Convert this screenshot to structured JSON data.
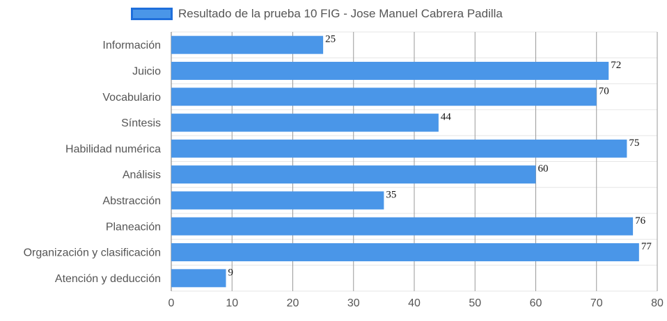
{
  "chart_data": {
    "type": "bar",
    "orientation": "horizontal",
    "title": "",
    "xlabel": "",
    "ylabel": "",
    "categories": [
      "Información",
      "Juicio",
      "Vocabulario",
      "Síntesis",
      "Habilidad numérica",
      "Análisis",
      "Abstracción",
      "Planeación",
      "Organización y clasificación",
      "Atención y deducción"
    ],
    "series": [
      {
        "name": "Resultado de la prueba 10 FIG - Jose Manuel Cabrera Padilla",
        "values": [
          25,
          72,
          70,
          44,
          75,
          60,
          35,
          76,
          77,
          9
        ],
        "color": "#4a96e8"
      }
    ],
    "xlim": [
      0,
      80
    ],
    "ticks": [
      "0",
      "10",
      "20",
      "30",
      "40",
      "50",
      "60",
      "70",
      "80"
    ],
    "legend_position": "top",
    "grid": true,
    "colors": {
      "bar": "#4a96e8",
      "legend_border": "#1f6fdb",
      "vertical_grid": "#999999",
      "horizontal_grid": "#e6e6e6",
      "text": "#555555",
      "data_label": "#111111"
    }
  }
}
